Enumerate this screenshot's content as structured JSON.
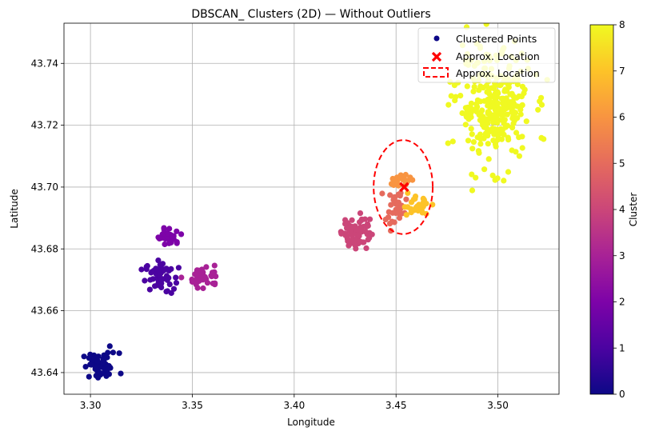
{
  "chart_data": {
    "type": "scatter",
    "title": "DBSCAN_ Clusters (2D) — Without Outliers",
    "xlabel": "Longitude",
    "ylabel": "Latitude",
    "xlim": [
      3.287,
      3.53
    ],
    "ylim": [
      43.633,
      43.753
    ],
    "x_ticks": [
      3.3,
      3.35,
      3.4,
      3.45,
      3.5
    ],
    "x_tick_labels": [
      "3.30",
      "3.35",
      "3.40",
      "3.45",
      "3.50"
    ],
    "y_ticks": [
      43.64,
      43.66,
      43.68,
      43.7,
      43.72,
      43.74
    ],
    "y_tick_labels": [
      "43.64",
      "43.66",
      "43.68",
      "43.70",
      "43.72",
      "43.74"
    ],
    "grid": true,
    "legend_position": "top-right",
    "legend": [
      {
        "label": "Clustered Points",
        "marker": "dot",
        "color": "#0d0887"
      },
      {
        "label": "Approx. Location",
        "marker": "x",
        "color": "#ff0000"
      },
      {
        "label": "Approx. Location",
        "marker": "dashed-ellipse",
        "color": "#ff0000"
      }
    ],
    "colorbar": {
      "label": "Cluster",
      "min": 0,
      "max": 8,
      "ticks": [
        0,
        1,
        2,
        3,
        4,
        5,
        6,
        7,
        8
      ],
      "tick_labels": [
        "0",
        "1",
        "2",
        "3",
        "4",
        "5",
        "6",
        "7",
        "8"
      ],
      "colormap": "plasma"
    },
    "clusters": [
      {
        "id": 0,
        "center": [
          3.305,
          43.642
        ],
        "spread": [
          0.0045,
          0.0022
        ],
        "count": 55
      },
      {
        "id": 1,
        "center": [
          3.334,
          43.671
        ],
        "spread": [
          0.0035,
          0.0025
        ],
        "count": 50
      },
      {
        "id": 2,
        "center": [
          3.339,
          43.684
        ],
        "spread": [
          0.003,
          0.0014
        ],
        "count": 30
      },
      {
        "id": 3,
        "center": [
          3.356,
          43.671
        ],
        "spread": [
          0.0035,
          0.0018
        ],
        "count": 40
      },
      {
        "id": 4,
        "center": [
          3.43,
          43.686
        ],
        "spread": [
          0.0035,
          0.003
        ],
        "count": 70
      },
      {
        "id": 5,
        "center": [
          3.45,
          43.693
        ],
        "spread": [
          0.0025,
          0.003
        ],
        "count": 35
      },
      {
        "id": 6,
        "center": [
          3.452,
          43.702
        ],
        "spread": [
          0.0025,
          0.001
        ],
        "count": 25
      },
      {
        "id": 7,
        "center": [
          3.46,
          43.694
        ],
        "spread": [
          0.0035,
          0.0015
        ],
        "count": 30
      },
      {
        "id": 8,
        "center": [
          3.498,
          43.726
        ],
        "spread": [
          0.009,
          0.009
        ],
        "count": 300
      }
    ],
    "approx_location": {
      "x": 3.454,
      "y": 43.7
    },
    "ellipse": {
      "cx": 3.4535,
      "cy": 43.7,
      "rx": 0.0145,
      "ry": 0.0152
    }
  }
}
